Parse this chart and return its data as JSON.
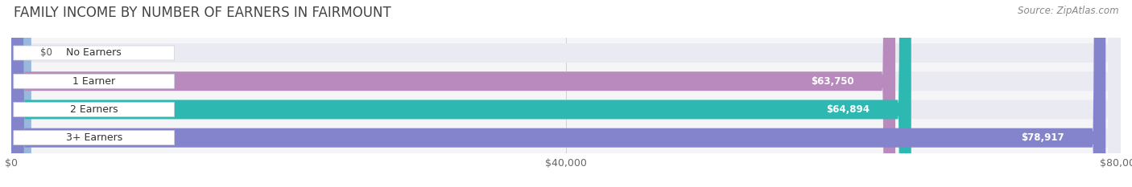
{
  "title": "Family Income by Number of Earners in Fairmount",
  "source": "Source: ZipAtlas.com",
  "categories": [
    "No Earners",
    "1 Earner",
    "2 Earners",
    "3+ Earners"
  ],
  "values": [
    0,
    63750,
    64894,
    78917
  ],
  "labels": [
    "$0",
    "$63,750",
    "$64,894",
    "$78,917"
  ],
  "bar_colors": [
    "#9ab8de",
    "#b88abe",
    "#2db8b2",
    "#8484cc"
  ],
  "bar_bg_color": "#f0f0f8",
  "figure_bg": "#ffffff",
  "axes_bg": "#f5f5f8",
  "xlim": [
    0,
    80000
  ],
  "xtick_values": [
    0,
    40000,
    80000
  ],
  "xtick_labels": [
    "$0",
    "$40,000",
    "$80,000"
  ],
  "title_fontsize": 12,
  "source_fontsize": 8.5,
  "label_fontsize": 9,
  "cat_fontsize": 9,
  "val_fontsize": 8.5,
  "bar_height": 0.68,
  "figsize": [
    14.06,
    2.33
  ],
  "dpi": 100
}
